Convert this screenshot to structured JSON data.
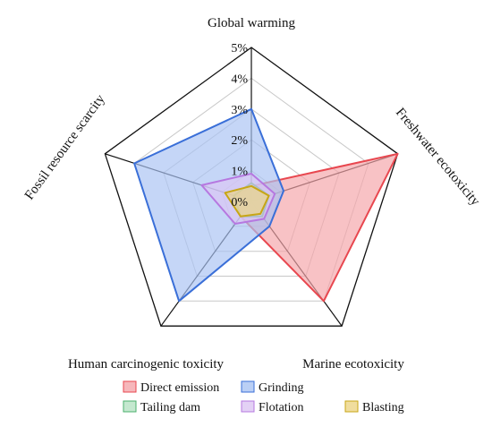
{
  "chart_data": {
    "type": "radar",
    "axes": [
      "Global warming",
      "Freshwater ecotoxicity",
      "Marine ecotoxicity",
      "Human carcinogenic toxicity",
      "Fossil resource scarcity"
    ],
    "rlim": [
      0,
      5
    ],
    "ticks": [
      "0%",
      "1%",
      "2%",
      "3%",
      "4%",
      "5%"
    ],
    "grid": true,
    "legend_position": "bottom",
    "series": [
      {
        "name": "Direct emission",
        "values": [
          0.5,
          5.0,
          4.0,
          0.6,
          0.5
        ],
        "stroke": "#e8474f",
        "fill": "#f4a5aa"
      },
      {
        "name": "Grinding",
        "values": [
          3.0,
          1.1,
          1.0,
          4.0,
          4.0
        ],
        "stroke": "#3a6fd8",
        "fill": "#a9c3f3"
      },
      {
        "name": "Tailing dam",
        "values": [
          0.6,
          0.6,
          0.6,
          0.6,
          0.6
        ],
        "stroke": "#4bb06e",
        "fill": "#b5e2c3"
      },
      {
        "name": "Flotation",
        "values": [
          0.9,
          0.8,
          0.7,
          0.9,
          1.7
        ],
        "stroke": "#b678e0",
        "fill": "#dcc6f3"
      },
      {
        "name": "Blasting",
        "values": [
          0.5,
          0.6,
          0.5,
          0.6,
          0.9
        ],
        "stroke": "#c8a616",
        "fill": "#ecd486"
      }
    ]
  }
}
